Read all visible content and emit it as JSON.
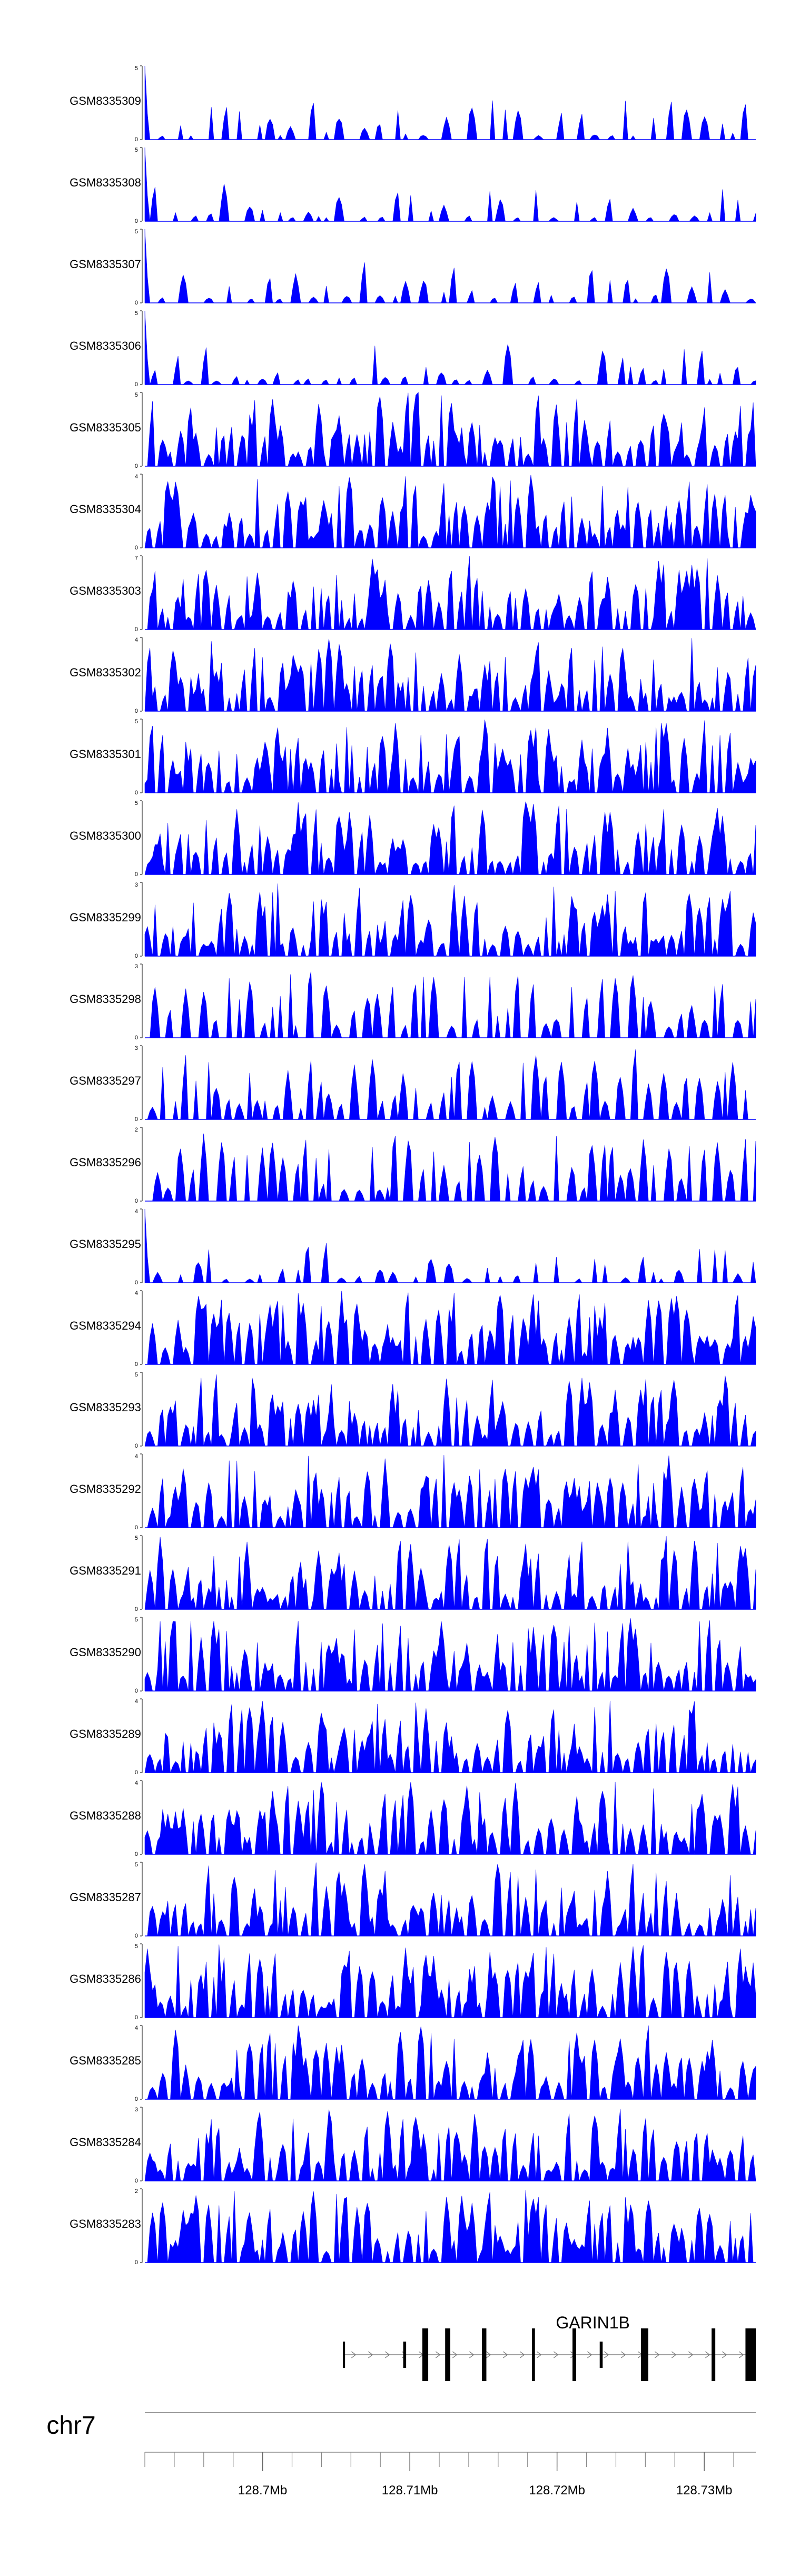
{
  "chart_data": {
    "type": "area",
    "title": "",
    "xlabel": "",
    "ylabel": "",
    "track_color": "#0000ff",
    "region_start_mb": 128.692,
    "region_end_mb": 128.7335,
    "tracks": [
      {
        "name": "GSM8335309",
        "ymax": "5",
        "ymin": "0",
        "ymax_value": 5,
        "pattern": "sparse",
        "seed": 309,
        "values": []
      },
      {
        "name": "GSM8335308",
        "ymax": "5",
        "ymin": "0",
        "ymax_value": 5,
        "pattern": "sparse",
        "seed": 308,
        "values": []
      },
      {
        "name": "GSM8335307",
        "ymax": "5",
        "ymin": "0",
        "ymax_value": 5,
        "pattern": "sparse",
        "seed": 307,
        "values": []
      },
      {
        "name": "GSM8335306",
        "ymax": "5",
        "ymin": "0",
        "ymax_value": 5,
        "pattern": "sparse",
        "seed": 306,
        "values": []
      },
      {
        "name": "GSM8335305",
        "ymax": "5",
        "ymin": "0",
        "ymax_value": 5,
        "pattern": "dense",
        "seed": 305,
        "values": []
      },
      {
        "name": "GSM8335304",
        "ymax": "4",
        "ymin": "0",
        "ymax_value": 4,
        "pattern": "dense",
        "seed": 304,
        "values": []
      },
      {
        "name": "GSM8335303",
        "ymax": "7",
        "ymin": "0",
        "ymax_value": 7,
        "pattern": "dense",
        "seed": 303,
        "values": []
      },
      {
        "name": "GSM8335302",
        "ymax": "4",
        "ymin": "0",
        "ymax_value": 4,
        "pattern": "dense",
        "seed": 302,
        "values": []
      },
      {
        "name": "GSM8335301",
        "ymax": "5",
        "ymin": "0",
        "ymax_value": 5,
        "pattern": "dense",
        "seed": 301,
        "values": []
      },
      {
        "name": "GSM8335300",
        "ymax": "5",
        "ymin": "0",
        "ymax_value": 5,
        "pattern": "dense",
        "seed": 300,
        "values": []
      },
      {
        "name": "GSM8335299",
        "ymax": "3",
        "ymin": "0",
        "ymax_value": 3,
        "pattern": "dense",
        "seed": 299,
        "values": []
      },
      {
        "name": "GSM8335298",
        "ymax": "3",
        "ymin": "0",
        "ymax_value": 3,
        "pattern": "medium",
        "seed": 298,
        "values": []
      },
      {
        "name": "GSM8335297",
        "ymax": "3",
        "ymin": "0",
        "ymax_value": 3,
        "pattern": "medium",
        "seed": 297,
        "values": []
      },
      {
        "name": "GSM8335296",
        "ymax": "2",
        "ymin": "0",
        "ymax_value": 2,
        "pattern": "medium",
        "seed": 296,
        "values": []
      },
      {
        "name": "GSM8335295",
        "ymax": "4",
        "ymin": "0",
        "ymax_value": 4,
        "pattern": "sparse",
        "seed": 295,
        "values": []
      },
      {
        "name": "GSM8335294",
        "ymax": "4",
        "ymin": "0",
        "ymax_value": 4,
        "pattern": "dense",
        "seed": 294,
        "values": []
      },
      {
        "name": "GSM8335293",
        "ymax": "5",
        "ymin": "0",
        "ymax_value": 5,
        "pattern": "dense",
        "seed": 293,
        "values": []
      },
      {
        "name": "GSM8335292",
        "ymax": "4",
        "ymin": "0",
        "ymax_value": 4,
        "pattern": "dense",
        "seed": 292,
        "values": []
      },
      {
        "name": "GSM8335291",
        "ymax": "5",
        "ymin": "0",
        "ymax_value": 5,
        "pattern": "dense",
        "seed": 291,
        "values": []
      },
      {
        "name": "GSM8335290",
        "ymax": "5",
        "ymin": "0",
        "ymax_value": 5,
        "pattern": "dense",
        "seed": 290,
        "values": []
      },
      {
        "name": "GSM8335289",
        "ymax": "4",
        "ymin": "0",
        "ymax_value": 4,
        "pattern": "dense",
        "seed": 289,
        "values": []
      },
      {
        "name": "GSM8335288",
        "ymax": "4",
        "ymin": "0",
        "ymax_value": 4,
        "pattern": "dense",
        "seed": 288,
        "values": []
      },
      {
        "name": "GSM8335287",
        "ymax": "5",
        "ymin": "0",
        "ymax_value": 5,
        "pattern": "dense",
        "seed": 287,
        "values": []
      },
      {
        "name": "GSM8335286",
        "ymax": "5",
        "ymin": "0",
        "ymax_value": 5,
        "pattern": "dense",
        "seed": 286,
        "values": []
      },
      {
        "name": "GSM8335285",
        "ymax": "4",
        "ymin": "0",
        "ymax_value": 4,
        "pattern": "dense",
        "seed": 285,
        "values": []
      },
      {
        "name": "GSM8335284",
        "ymax": "3",
        "ymin": "0",
        "ymax_value": 3,
        "pattern": "dense",
        "seed": 284,
        "values": []
      },
      {
        "name": "GSM8335283",
        "ymax": "2",
        "ymin": "0",
        "ymax_value": 2,
        "pattern": "dense",
        "seed": 283,
        "values": []
      }
    ],
    "gene": {
      "name": "GARIN1B",
      "strand": "+",
      "start_mb": 128.7055,
      "end_mb": 128.7335,
      "exons_mb": [
        {
          "s": 128.70545,
          "e": 128.7056,
          "tall": true
        },
        {
          "s": 128.70955,
          "e": 128.70975,
          "tall": true
        },
        {
          "s": 128.71085,
          "e": 128.71125,
          "tall": false
        },
        {
          "s": 128.7124,
          "e": 128.71275,
          "tall": false
        },
        {
          "s": 128.7149,
          "e": 128.7152,
          "tall": false
        },
        {
          "s": 128.7183,
          "e": 128.7185,
          "tall": false
        },
        {
          "s": 128.72105,
          "e": 128.7213,
          "tall": false
        },
        {
          "s": 128.7229,
          "e": 128.7231,
          "tall": true
        },
        {
          "s": 128.7257,
          "e": 128.7262,
          "tall": false
        },
        {
          "s": 128.7305,
          "e": 128.73075,
          "tall": false
        },
        {
          "s": 128.7328,
          "e": 128.7335,
          "tall": false
        }
      ]
    },
    "chromosome": "chr7",
    "axis_ticks": [
      {
        "pos": 128.7,
        "label": "128.7Mb"
      },
      {
        "pos": 128.71,
        "label": "128.71Mb"
      },
      {
        "pos": 128.72,
        "label": "128.72Mb"
      },
      {
        "pos": 128.73,
        "label": "128.73Mb"
      }
    ],
    "minor_tick_step_mb": 0.002
  }
}
